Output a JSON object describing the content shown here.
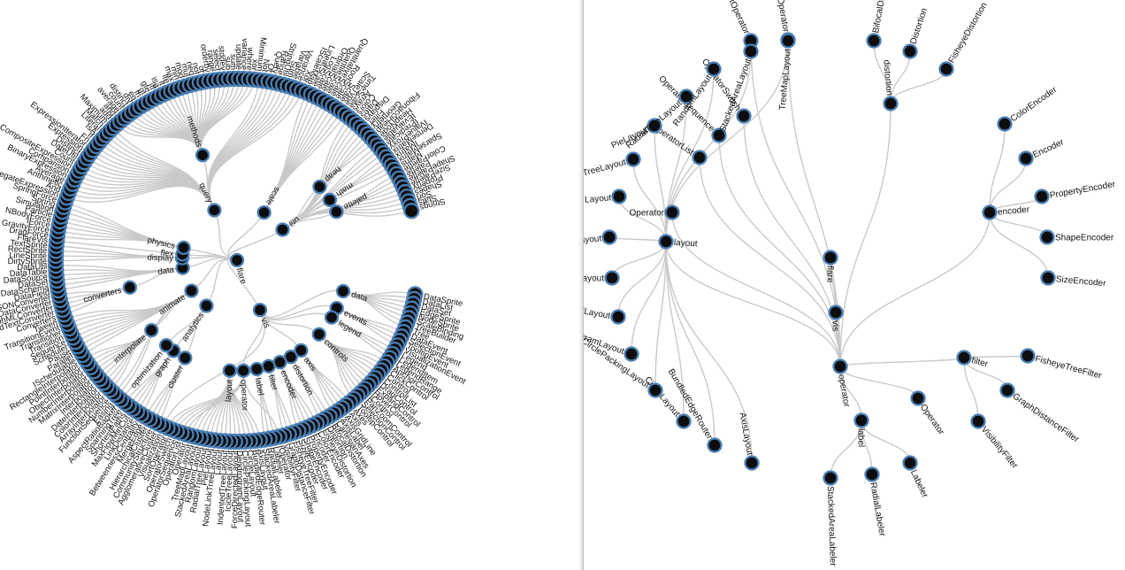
{
  "left_tree": {
    "root": "flare",
    "children": [
      {
        "name": "vis",
        "children": [
          {
            "name": "data",
            "children": [
              {
                "name": "DataSprite"
              },
              {
                "name": "DataList"
              },
              {
                "name": "DataSet"
              },
              {
                "name": "EdgeSprite"
              },
              {
                "name": "NodeSprite"
              },
              {
                "name": "ScaleBinding"
              },
              {
                "name": "TreeBuilder"
              },
              {
                "name": "Tree"
              }
            ]
          },
          {
            "name": "events",
            "children": [
              {
                "name": "DataEvent"
              },
              {
                "name": "SelectionEvent"
              },
              {
                "name": "TooltipEvent"
              },
              {
                "name": "VisualizationEvent"
              }
            ]
          },
          {
            "name": "legend",
            "children": [
              {
                "name": "Legend"
              },
              {
                "name": "LegendItem"
              },
              {
                "name": "LegendRange"
              }
            ]
          },
          {
            "name": "controls",
            "children": [
              {
                "name": "AnchorControl"
              },
              {
                "name": "ClickControl"
              },
              {
                "name": "Control"
              },
              {
                "name": "ControlList"
              },
              {
                "name": "DragControl"
              },
              {
                "name": "ExpandControl"
              },
              {
                "name": "HoverControl"
              },
              {
                "name": "IControl"
              },
              {
                "name": "PanZoomControl"
              },
              {
                "name": "SelectionControl"
              },
              {
                "name": "TooltipControl"
              }
            ]
          },
          {
            "name": "axis",
            "children": [
              {
                "name": "Axes"
              },
              {
                "name": "Axis"
              },
              {
                "name": "AxisGridLine"
              },
              {
                "name": "AxisLabel"
              },
              {
                "name": "CartesianAxes"
              }
            ]
          },
          {
            "name": "operator",
            "children": [
              {
                "name": "distortion",
                "children": [
                  {
                    "name": "BifocalDistortion"
                  },
                  {
                    "name": "Distortion"
                  },
                  {
                    "name": "FisheyeDistortion"
                  }
                ]
              },
              {
                "name": "encoder",
                "children": [
                  {
                    "name": "ColorEncoder"
                  },
                  {
                    "name": "Encoder"
                  },
                  {
                    "name": "PropertyEncoder"
                  },
                  {
                    "name": "ShapeEncoder"
                  },
                  {
                    "name": "SizeEncoder"
                  }
                ]
              },
              {
                "name": "filter",
                "children": [
                  {
                    "name": "FisheyeTreeFilter"
                  },
                  {
                    "name": "GraphDistanceFilter"
                  },
                  {
                    "name": "VisibilityFilter"
                  }
                ]
              },
              {
                "name": "IOperator"
              },
              {
                "name": "label",
                "children": [
                  {
                    "name": "Labeler"
                  },
                  {
                    "name": "RadialLabeler"
                  },
                  {
                    "name": "StackedAreaLabeler"
                  }
                ]
              },
              {
                "name": "layout",
                "children": [
                  {
                    "name": "AxisLayout"
                  },
                  {
                    "name": "BundledEdgeRouter"
                  },
                  {
                    "name": "CircleLayout"
                  },
                  {
                    "name": "CirclePackingLayout"
                  },
                  {
                    "name": "DendrogramLayout"
                  },
                  {
                    "name": "ForceDirectedLayout"
                  },
                  {
                    "name": "IcicleTreeLayout"
                  },
                  {
                    "name": "IndentedTreeLayout"
                  },
                  {
                    "name": "Layout"
                  },
                  {
                    "name": "NodeLinkTreeLayout"
                  },
                  {
                    "name": "PieLayout"
                  },
                  {
                    "name": "RadialTreeLayout"
                  },
                  {
                    "name": "RandomLayout"
                  },
                  {
                    "name": "StackedAreaLayout"
                  },
                  {
                    "name": "TreeMapLayout"
                  }
                ]
              },
              {
                "name": "Operator"
              },
              {
                "name": "OperatorList"
              },
              {
                "name": "OperatorSequence"
              },
              {
                "name": "OperatorSwitch"
              },
              {
                "name": "SortOperator"
              }
            ]
          },
          {
            "name": "Visualization"
          }
        ]
      },
      {
        "name": "analytics",
        "children": [
          {
            "name": "cluster",
            "children": [
              {
                "name": "AgglomerativeCluster"
              },
              {
                "name": "CommunityStructure"
              },
              {
                "name": "HierarchicalCluster"
              },
              {
                "name": "MergeEdge"
              }
            ]
          },
          {
            "name": "graph",
            "children": [
              {
                "name": "BetweennessCentrality"
              },
              {
                "name": "LinkDistance"
              },
              {
                "name": "MaxFlowMinCut"
              },
              {
                "name": "ShortestPaths"
              },
              {
                "name": "SpanningTree"
              }
            ]
          },
          {
            "name": "optimization",
            "children": [
              {
                "name": "AspectRatioBanker"
              }
            ]
          }
        ]
      },
      {
        "name": "animate",
        "children": [
          {
            "name": "Easing"
          },
          {
            "name": "FunctionSequence"
          },
          {
            "name": "interpolate",
            "children": [
              {
                "name": "ArrayInterpolator"
              },
              {
                "name": "ColorInterpolator"
              },
              {
                "name": "DateInterpolator"
              },
              {
                "name": "Interpolator"
              },
              {
                "name": "MatrixInterpolator"
              },
              {
                "name": "NumberInterpolator"
              },
              {
                "name": "ObjectInterpolator"
              },
              {
                "name": "PointInterpolator"
              },
              {
                "name": "RectangleInterpolator"
              }
            ]
          },
          {
            "name": "ISchedulable"
          },
          {
            "name": "Parallel"
          },
          {
            "name": "Pause"
          },
          {
            "name": "Scheduler"
          },
          {
            "name": "Sequence"
          },
          {
            "name": "Transition"
          },
          {
            "name": "Transitioner"
          },
          {
            "name": "TransitionEvent"
          },
          {
            "name": "Tween"
          }
        ]
      },
      {
        "name": "data",
        "children": [
          {
            "name": "converters",
            "children": [
              {
                "name": "Converters"
              },
              {
                "name": "DelimitedTextConverter"
              },
              {
                "name": "GraphMLConverter"
              },
              {
                "name": "IDataConverter"
              },
              {
                "name": "JSONConverter"
              }
            ]
          },
          {
            "name": "DataField"
          },
          {
            "name": "DataSchema"
          },
          {
            "name": "DataSet"
          },
          {
            "name": "DataSource"
          },
          {
            "name": "DataTable"
          },
          {
            "name": "DataUtil"
          }
        ]
      },
      {
        "name": "display",
        "children": [
          {
            "name": "DirtySprite"
          },
          {
            "name": "LineSprite"
          },
          {
            "name": "RectSprite"
          },
          {
            "name": "TextSprite"
          }
        ]
      },
      {
        "name": "flex",
        "children": [
          {
            "name": "FlareVis"
          }
        ]
      },
      {
        "name": "physics",
        "children": [
          {
            "name": "DragForce"
          },
          {
            "name": "GravityForce"
          },
          {
            "name": "IForce"
          },
          {
            "name": "NBodyForce"
          },
          {
            "name": "Particle"
          },
          {
            "name": "Simulation"
          },
          {
            "name": "Spring"
          },
          {
            "name": "SpringForce"
          }
        ]
      },
      {
        "name": "query",
        "children": [
          {
            "name": "AggregateExpression"
          },
          {
            "name": "And"
          },
          {
            "name": "Arithmetic"
          },
          {
            "name": "Average"
          },
          {
            "name": "BinaryExpression"
          },
          {
            "name": "Comparison"
          },
          {
            "name": "CompositeExpression"
          },
          {
            "name": "Count"
          },
          {
            "name": "DateUtil"
          },
          {
            "name": "Distinct"
          },
          {
            "name": "Expression"
          },
          {
            "name": "ExpressionIterator"
          },
          {
            "name": "Fn"
          },
          {
            "name": "If"
          },
          {
            "name": "IsA"
          },
          {
            "name": "Literal"
          },
          {
            "name": "Match"
          },
          {
            "name": "Maximum"
          },
          {
            "name": "methods",
            "children": [
              {
                "name": "add"
              },
              {
                "name": "and"
              },
              {
                "name": "average"
              },
              {
                "name": "count"
              },
              {
                "name": "distinct"
              },
              {
                "name": "div"
              },
              {
                "name": "eq"
              },
              {
                "name": "fn"
              },
              {
                "name": "gt"
              },
              {
                "name": "gte"
              },
              {
                "name": "iff"
              },
              {
                "name": "isa"
              },
              {
                "name": "lt"
              },
              {
                "name": "lte"
              },
              {
                "name": "max"
              },
              {
                "name": "min"
              },
              {
                "name": "mod"
              },
              {
                "name": "mul"
              },
              {
                "name": "neq"
              },
              {
                "name": "not"
              },
              {
                "name": "or"
              },
              {
                "name": "orderby"
              },
              {
                "name": "range"
              },
              {
                "name": "select"
              },
              {
                "name": "stddev"
              },
              {
                "name": "sub"
              },
              {
                "name": "sum"
              },
              {
                "name": "update"
              },
              {
                "name": "variance"
              },
              {
                "name": "where"
              },
              {
                "name": "xor"
              }
            ]
          },
          {
            "name": "Minimum"
          },
          {
            "name": "Not"
          },
          {
            "name": "Or"
          },
          {
            "name": "Query"
          },
          {
            "name": "Range"
          },
          {
            "name": "StringUtil"
          },
          {
            "name": "Sum"
          },
          {
            "name": "Variable"
          },
          {
            "name": "Variance"
          },
          {
            "name": "Xor"
          }
        ]
      },
      {
        "name": "scale",
        "children": [
          {
            "name": "IScaleMap"
          },
          {
            "name": "LinearScale"
          },
          {
            "name": "LogScale"
          },
          {
            "name": "OrdinalScale"
          },
          {
            "name": "QuantileScale"
          },
          {
            "name": "QuantitativeScale"
          },
          {
            "name": "RootScale"
          },
          {
            "name": "Scale"
          },
          {
            "name": "ScaleType"
          },
          {
            "name": "TimeScale"
          }
        ]
      },
      {
        "name": "util",
        "children": [
          {
            "name": "Arrays"
          },
          {
            "name": "Colors"
          },
          {
            "name": "Dates"
          },
          {
            "name": "Displays"
          },
          {
            "name": "Filter"
          },
          {
            "name": "Geometry"
          },
          {
            "name": "heap",
            "children": [
              {
                "name": "FibonacciHeap"
              },
              {
                "name": "HeapNode"
              }
            ]
          },
          {
            "name": "IEvaluable"
          },
          {
            "name": "IPredicate"
          },
          {
            "name": "IValueProxy"
          },
          {
            "name": "math",
            "children": [
              {
                "name": "DenseMatrix"
              },
              {
                "name": "IMatrix"
              },
              {
                "name": "SparseMatrix"
              }
            ]
          },
          {
            "name": "Maths"
          },
          {
            "name": "palette",
            "children": [
              {
                "name": "ColorPalette"
              },
              {
                "name": "Palette"
              },
              {
                "name": "ShapePalette"
              },
              {
                "name": "SizePalette"
              }
            ]
          },
          {
            "name": "Property"
          },
          {
            "name": "Shapes"
          },
          {
            "name": "Sort"
          },
          {
            "name": "Stats"
          },
          {
            "name": "Strings"
          }
        ]
      }
    ]
  },
  "right_nodes": {
    "operator": "operator",
    "vis": "vis",
    "flare": "flare",
    "layout": "layout",
    "label": "label",
    "filter": "filter",
    "encoder": "encoder",
    "distortion": "distortion",
    "Operator": "Operator",
    "Labeler": "Labeler",
    "RadialLabeler": "RadialLabeler",
    "StackedAreaLabeler": "StackedAreaLabeler",
    "VisibilityFilter": "VisibilityFilter",
    "GraphDistanceFilter": "GraphDistanceFilter",
    "FisheyeTreeFilter": "FisheyeTreeFilter",
    "SizeEncoder": "SizeEncoder",
    "ShapeEncoder": "ShapeEncoder",
    "PropertyEncoder": "PropertyEncoder",
    "Encoder": "Encoder",
    "ColorEncoder": "ColorEncoder",
    "FisheyeDistortion": "FisheyeDistortion",
    "Distortion": "Distortion",
    "BifocalDistortion": "BifocalDistortion",
    "IOperator": "IOperator",
    "SortOperator": "SortOperator",
    "OperatorSwitch": "OperatorSwitch",
    "OperatorSequence": "OperatorSequence",
    "OperatorList": "OperatorList",
    "AxisLayout": "AxisLayout",
    "BundledEdgeRouter": "BundledEdgeRouter",
    "CircleLayout": "CircleLayout",
    "CirclePackingLayout": "CirclePackingLayout",
    "DendrogramLayout": "DendrogramLayout",
    "ForceDirectedLayout": "ForceDirectedLayout",
    "IcicleTreeLayout": "IcicleTreeLayout",
    "IndentedTreeLayout": "IndentedTreeLayout",
    "Layout": "Layout",
    "NodeLinkTreeLayout": "NodeLinkTreeLayout",
    "PieLayout": "PieLayout",
    "RadialTreeLayout": "RadialTreeLayout",
    "RandomLayout": "RandomLayout",
    "StackedAreaLayout": "StackedAreaLayout",
    "TreeMapLayout": "TreeMapLayout"
  },
  "colors": {
    "node_fill": "#0d0d0d",
    "node_stroke": "#4a7fb5",
    "link": "#c9c9c9",
    "background": "#ffffff"
  }
}
